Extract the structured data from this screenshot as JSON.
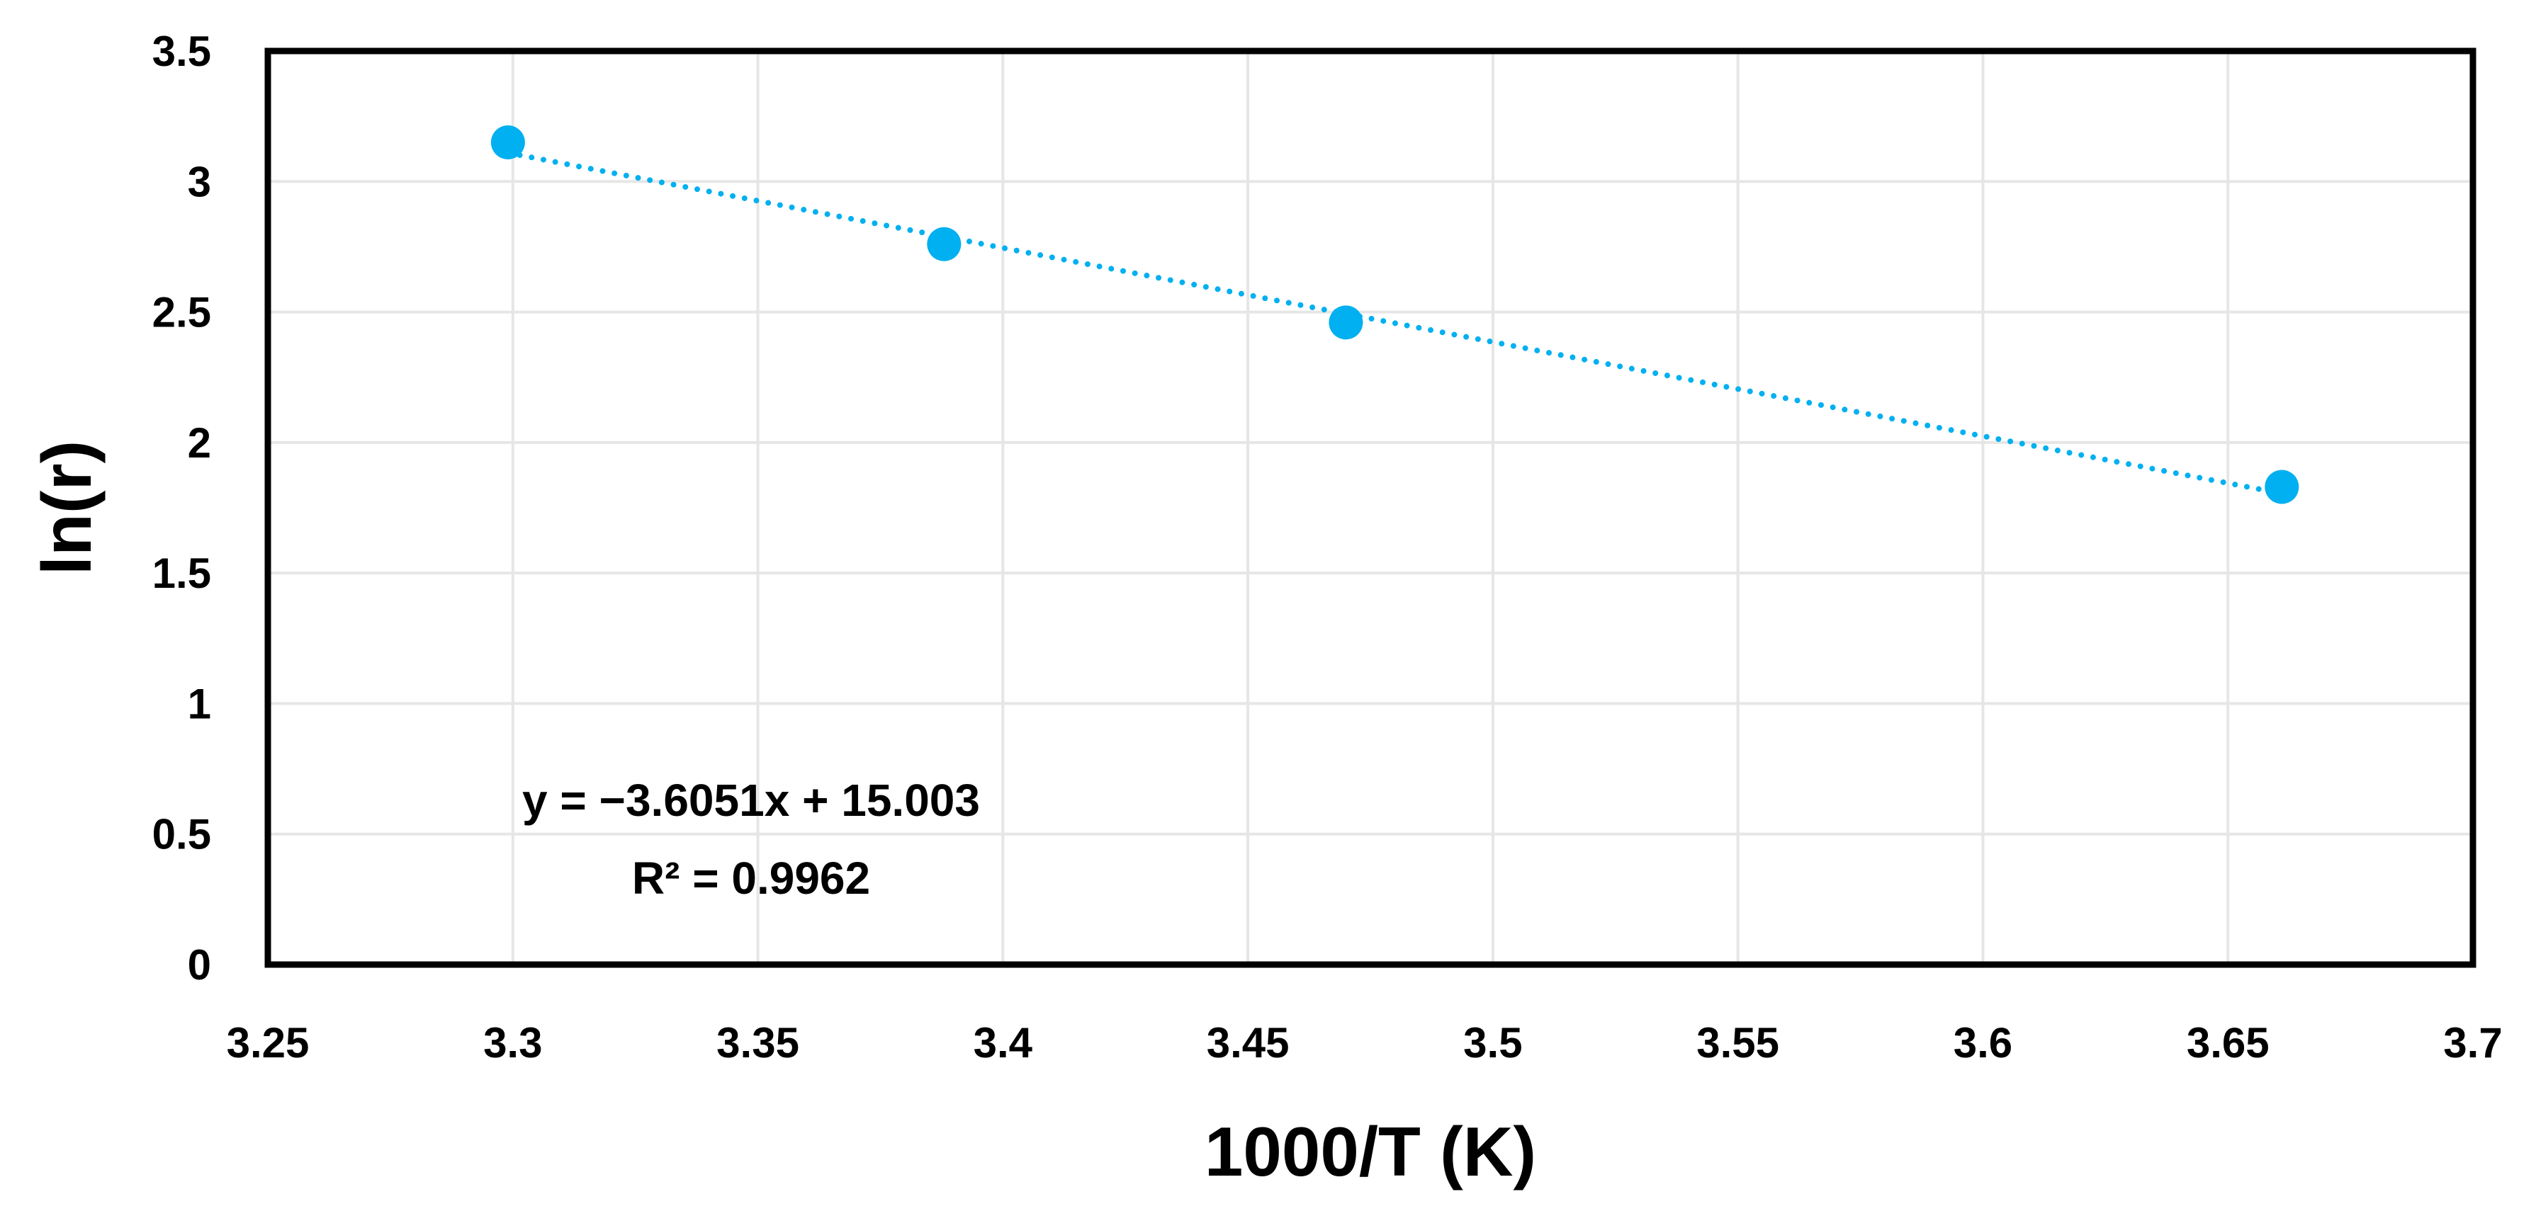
{
  "chart_data": {
    "type": "scatter",
    "title": "",
    "xlabel": "1000/T (K)",
    "ylabel": "ln(r)",
    "xlim": [
      3.25,
      3.7
    ],
    "ylim": [
      0,
      3.5
    ],
    "x_ticks": [
      "3.25",
      "3.3",
      "3.35",
      "3.4",
      "3.45",
      "3.5",
      "3.55",
      "3.6",
      "3.65",
      "3.7"
    ],
    "y_ticks": [
      "0",
      "0.5",
      "1",
      "1.5",
      "2",
      "2.5",
      "3",
      "3.5"
    ],
    "grid": true,
    "legend": "none",
    "series": [
      {
        "color": "#00b0f0",
        "marker": "circle",
        "points": [
          {
            "x": 3.299,
            "y": 3.15
          },
          {
            "x": 3.388,
            "y": 2.76
          },
          {
            "x": 3.47,
            "y": 2.46
          },
          {
            "x": 3.661,
            "y": 1.83
          }
        ]
      }
    ],
    "trendline": {
      "type": "linear",
      "style": "dotted",
      "color": "#00b0f0",
      "slope": -3.6051,
      "intercept": 15.003,
      "x_range": [
        3.299,
        3.661
      ],
      "equation": "y = −3.6051x + 15.003",
      "r_squared": "R² = 0.9962"
    }
  }
}
